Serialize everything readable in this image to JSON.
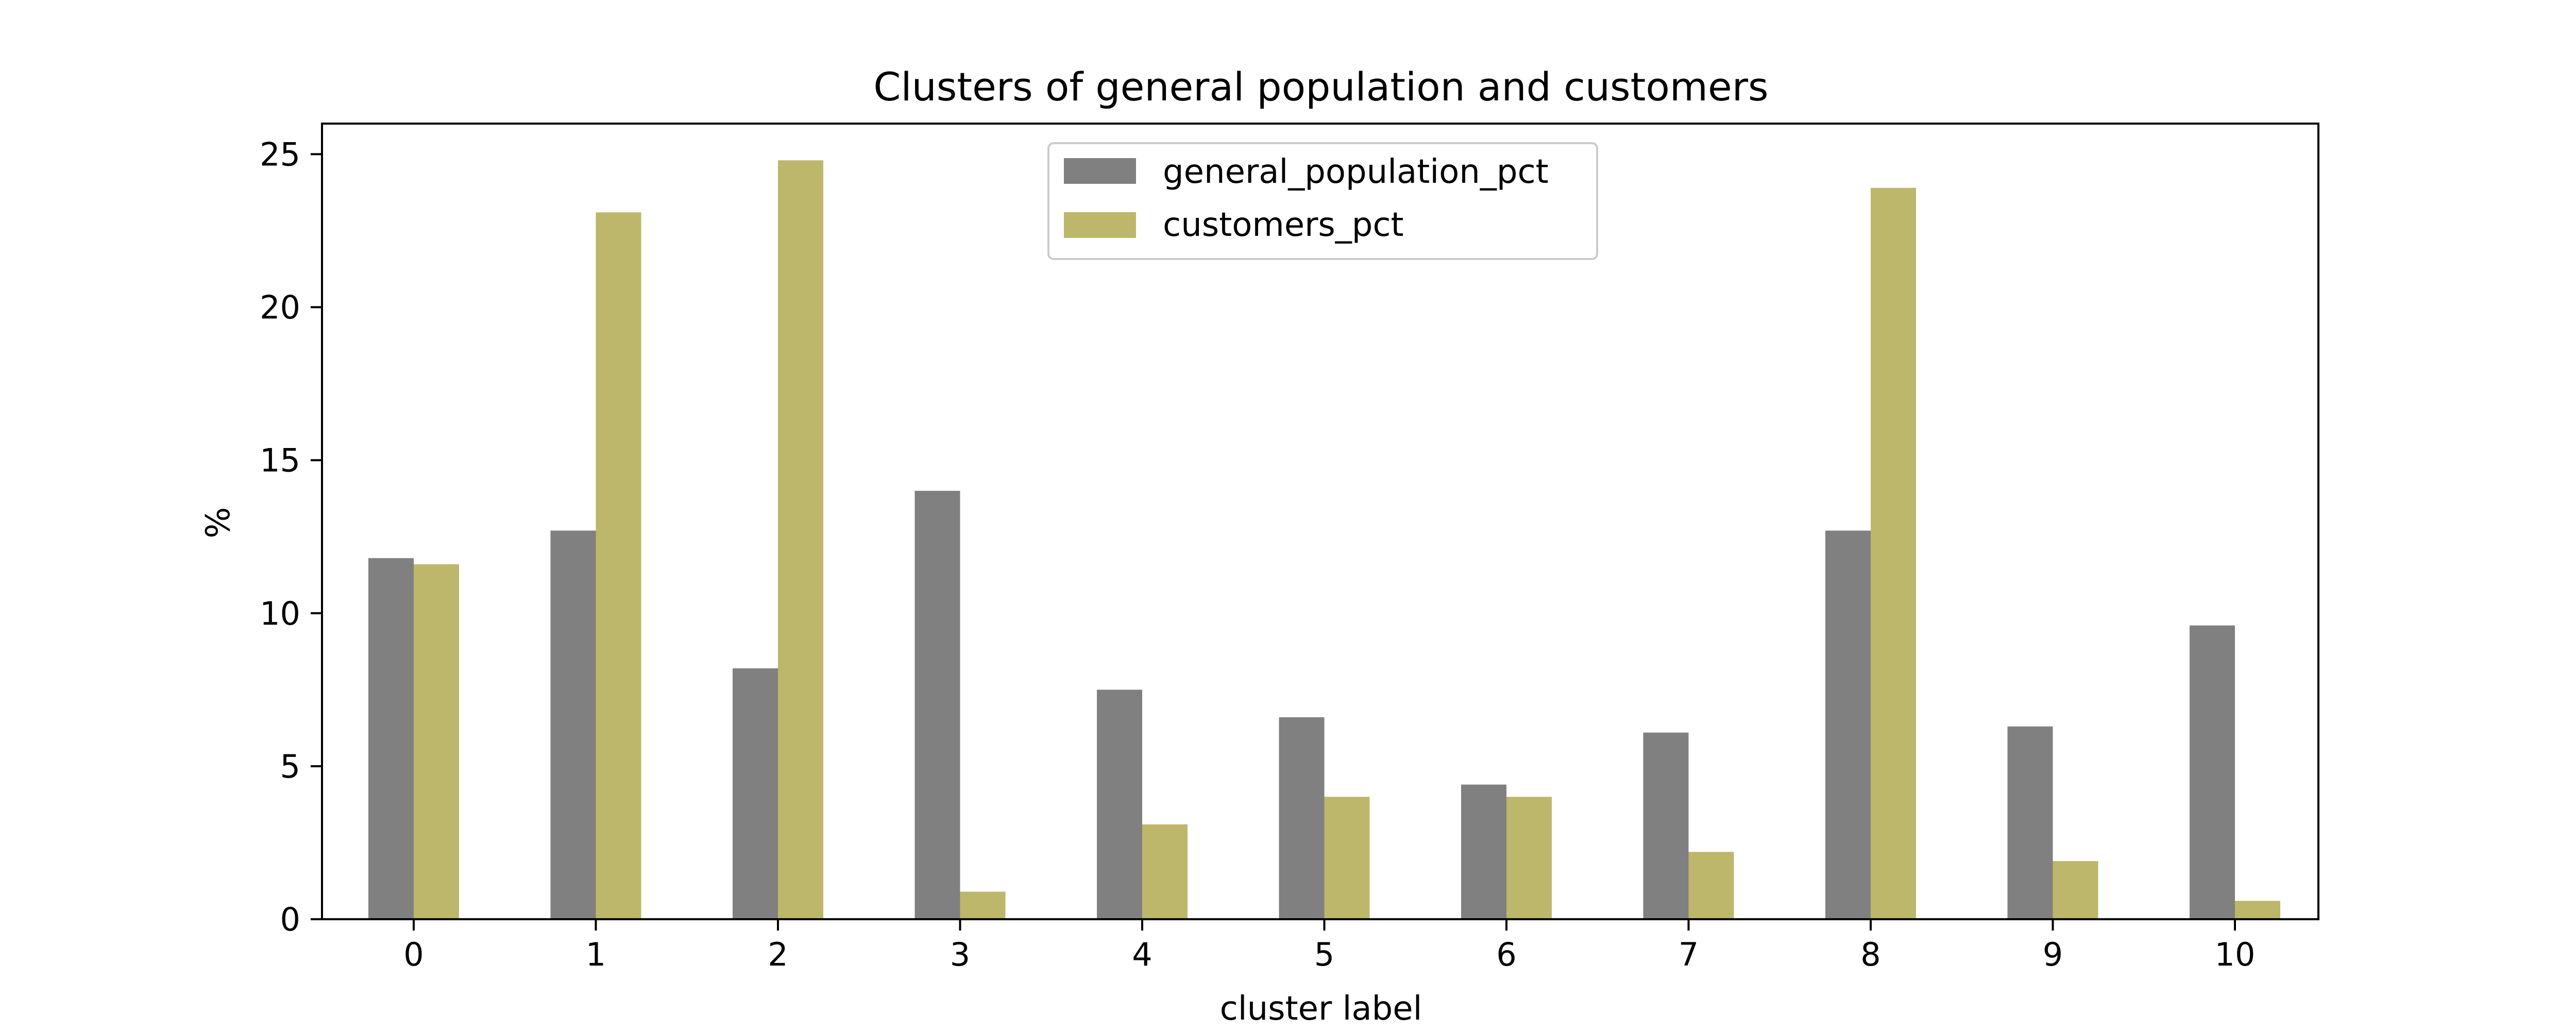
{
  "chart_data": {
    "type": "bar",
    "title": "Clusters of general population and customers",
    "xlabel": "cluster label",
    "ylabel": "%",
    "categories": [
      "0",
      "1",
      "2",
      "3",
      "4",
      "5",
      "6",
      "7",
      "8",
      "9",
      "10"
    ],
    "series": [
      {
        "name": "general_population_pct",
        "color": "#808080",
        "values": [
          11.8,
          12.7,
          8.2,
          14.0,
          7.5,
          6.6,
          4.4,
          6.1,
          12.7,
          6.3,
          9.6
        ]
      },
      {
        "name": "customers_pct",
        "color": "#bdb76b",
        "values": [
          11.6,
          23.1,
          24.8,
          0.9,
          3.1,
          4.0,
          4.0,
          2.2,
          23.9,
          1.9,
          0.6
        ]
      }
    ],
    "ylim": [
      0,
      26
    ],
    "yticks": [
      "0",
      "5",
      "10",
      "15",
      "20",
      "25"
    ],
    "grid": false,
    "legend_position": "top-center"
  }
}
